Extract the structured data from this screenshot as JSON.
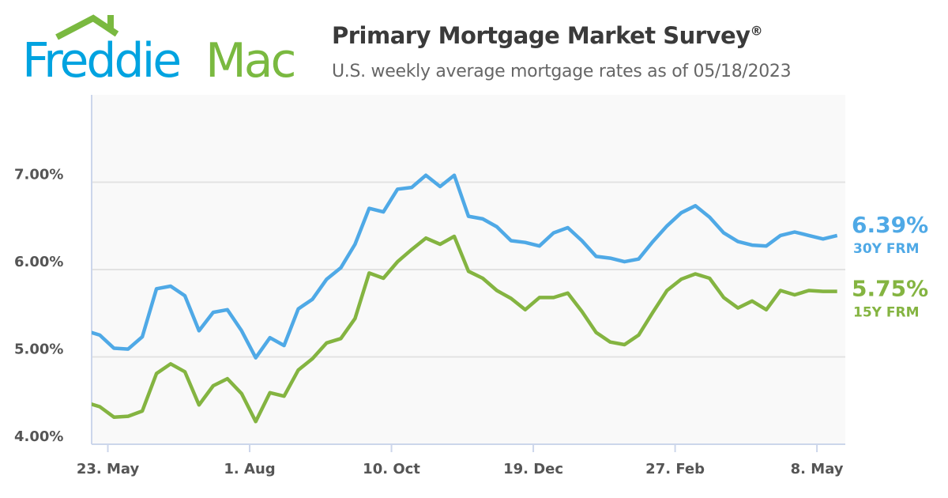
{
  "logo": {
    "text": "Freddie Mac",
    "colors": {
      "freddie": "#00A3E0",
      "mac": "#7AB940"
    }
  },
  "header": {
    "title": "Primary Mortgage Market Survey",
    "title_mark": "®",
    "subtitle": "U.S. weekly average mortgage rates as of 05/18/2023"
  },
  "chart_data": {
    "type": "line",
    "title": "Primary Mortgage Market Survey®",
    "subtitle": "U.S. weekly average mortgage rates as of 05/18/2023",
    "x_type": "date",
    "xlim": [
      "2022-05-15",
      "2023-05-22"
    ],
    "x_ticks": [
      {
        "date": "2022-05-23",
        "label": "23. May"
      },
      {
        "date": "2022-08-01",
        "label": "1. Aug"
      },
      {
        "date": "2022-10-10",
        "label": "10. Oct"
      },
      {
        "date": "2022-12-19",
        "label": "19. Dec"
      },
      {
        "date": "2023-02-27",
        "label": "27. Feb"
      },
      {
        "date": "2023-05-08",
        "label": "8. May"
      }
    ],
    "ylim": [
      4,
      8
    ],
    "y_ticks": [
      {
        "value": 4,
        "label": "4.00%"
      },
      {
        "value": 5,
        "label": "5.00%"
      },
      {
        "value": 6,
        "label": "6.00%"
      },
      {
        "value": 7,
        "label": "7.00%"
      }
    ],
    "grid": "horizontal",
    "x_start": "2022-05-12",
    "x_step_days": 7,
    "series": [
      {
        "name": "30Y FRM",
        "end_label": "6.39%",
        "color": "#4FA9E6",
        "values": [
          5.3,
          5.25,
          5.1,
          5.09,
          5.23,
          5.78,
          5.81,
          5.7,
          5.3,
          5.51,
          5.54,
          5.3,
          4.99,
          5.22,
          5.13,
          5.55,
          5.66,
          5.89,
          6.02,
          6.29,
          6.7,
          6.66,
          6.92,
          6.94,
          7.08,
          6.95,
          7.08,
          6.61,
          6.58,
          6.49,
          6.33,
          6.31,
          6.27,
          6.42,
          6.48,
          6.33,
          6.15,
          6.13,
          6.09,
          6.12,
          6.32,
          6.5,
          6.65,
          6.73,
          6.6,
          6.42,
          6.32,
          6.28,
          6.27,
          6.39,
          6.43,
          6.39,
          6.35,
          6.39
        ]
      },
      {
        "name": "15Y FRM",
        "end_label": "5.75%",
        "color": "#84B441",
        "values": [
          4.48,
          4.43,
          4.31,
          4.32,
          4.38,
          4.81,
          4.92,
          4.83,
          4.45,
          4.67,
          4.75,
          4.58,
          4.26,
          4.59,
          4.55,
          4.85,
          4.98,
          5.16,
          5.21,
          5.44,
          5.96,
          5.9,
          6.09,
          6.23,
          6.36,
          6.29,
          6.38,
          5.98,
          5.9,
          5.76,
          5.67,
          5.54,
          5.68,
          5.68,
          5.73,
          5.52,
          5.28,
          5.17,
          5.14,
          5.25,
          5.51,
          5.76,
          5.89,
          5.95,
          5.9,
          5.68,
          5.56,
          5.64,
          5.54,
          5.76,
          5.71,
          5.76,
          5.75,
          5.75
        ]
      }
    ]
  }
}
